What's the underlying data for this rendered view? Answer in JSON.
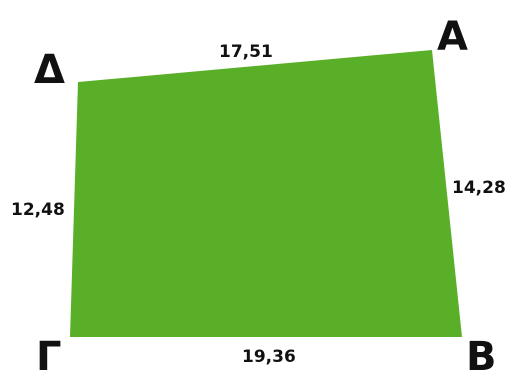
{
  "figure": {
    "fill_color": "#5aaf28",
    "label_color": "#111111",
    "vertices": {
      "A": "Α",
      "B": "Β",
      "G": "Γ",
      "D": "Δ"
    },
    "sides": {
      "DA": "17,51",
      "AB": "14,28",
      "GB": "19,36",
      "DG": "12,48"
    }
  }
}
